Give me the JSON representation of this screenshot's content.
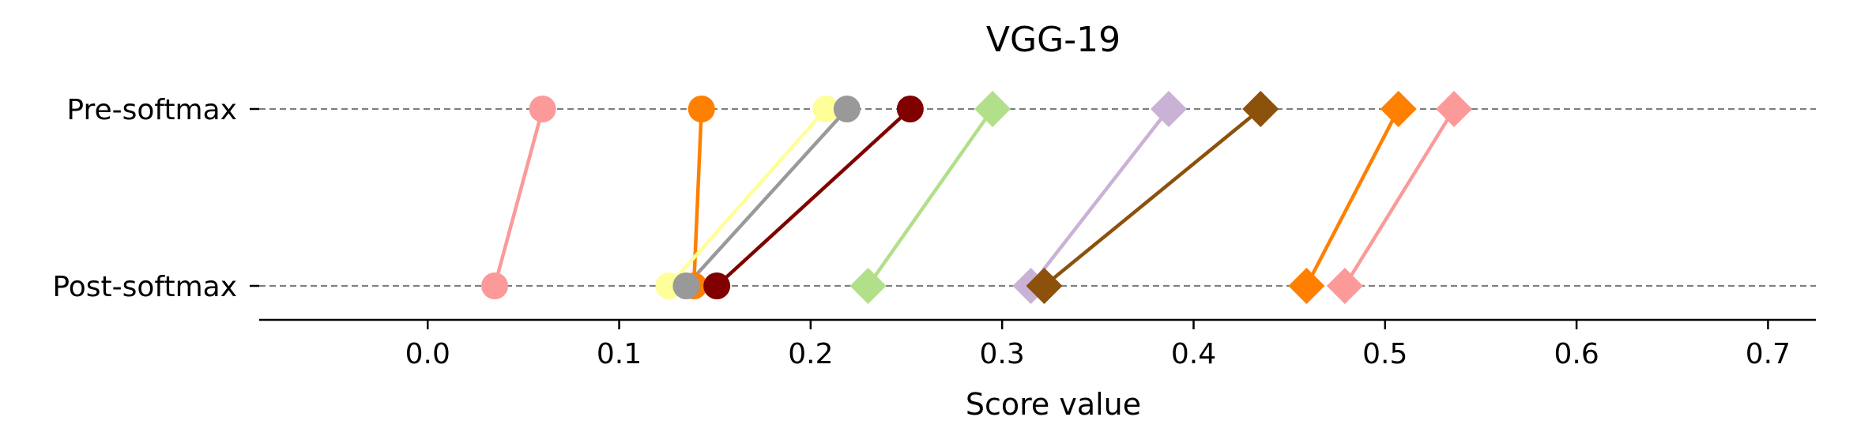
{
  "chart_data": {
    "type": "dumbbell",
    "title": "VGG-19",
    "xlabel": "Score value",
    "ylabel": "",
    "xlim": [
      -0.088,
      0.725
    ],
    "xticks": [
      0.0,
      0.1,
      0.2,
      0.3,
      0.4,
      0.5,
      0.6,
      0.7
    ],
    "xtick_labels": [
      "0.0",
      "0.1",
      "0.2",
      "0.3",
      "0.4",
      "0.5",
      "0.6",
      "0.7"
    ],
    "categories": [
      "Pre-softmax",
      "Post-softmax"
    ],
    "grid": "horizontal dashed at each category",
    "series": [
      {
        "marker": "circle",
        "color": "#fb9a99",
        "pre": 0.06,
        "post": 0.035
      },
      {
        "marker": "circle",
        "color": "#ff7f00",
        "pre": 0.143,
        "post": 0.139
      },
      {
        "marker": "circle",
        "color": "#ffff99",
        "pre": 0.208,
        "post": 0.126
      },
      {
        "marker": "circle",
        "color": "#999999",
        "pre": 0.219,
        "post": 0.135
      },
      {
        "marker": "circle",
        "color": "#800000",
        "pre": 0.252,
        "post": 0.151
      },
      {
        "marker": "diamond",
        "color": "#b2df8a",
        "pre": 0.295,
        "post": 0.23
      },
      {
        "marker": "diamond",
        "color": "#cab2d6",
        "pre": 0.387,
        "post": 0.315
      },
      {
        "marker": "diamond",
        "color": "#8c510a",
        "pre": 0.435,
        "post": 0.322
      },
      {
        "marker": "diamond",
        "color": "#ff7f00",
        "pre": 0.507,
        "post": 0.459
      },
      {
        "marker": "diamond",
        "color": "#fb9a99",
        "pre": 0.536,
        "post": 0.479
      }
    ]
  }
}
